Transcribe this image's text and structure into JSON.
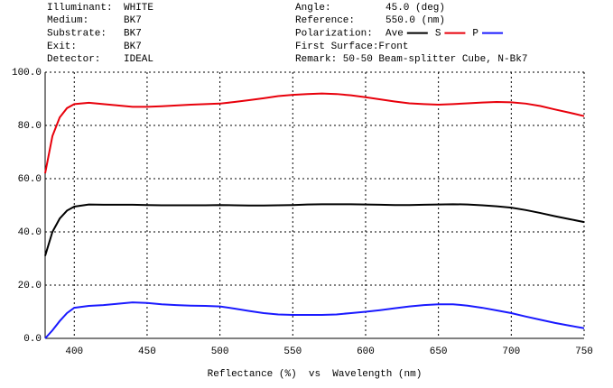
{
  "chart_data": {
    "type": "line",
    "info_left": [
      {
        "label": "Illuminant:",
        "value": "WHITE"
      },
      {
        "label": "Medium:",
        "value": "BK7"
      },
      {
        "label": "Substrate:",
        "value": "BK7"
      },
      {
        "label": "Exit:",
        "value": "BK7"
      },
      {
        "label": "Detector:",
        "value": "IDEAL"
      }
    ],
    "info_right": [
      {
        "label": "Angle:",
        "value": "45.0 (deg)"
      },
      {
        "label": "Reference:",
        "value": "550.0 (nm)"
      }
    ],
    "legend_label": "Polarization:",
    "first_surface": "First Surface:Front",
    "remark": "Remark: 50-50 Beam-splitter Cube, N-Bk7",
    "xlabel": "Reflectance (%)  vs  Wavelength (nm)",
    "x": [
      380,
      385,
      390,
      395,
      400,
      410,
      420,
      430,
      440,
      450,
      460,
      470,
      480,
      490,
      500,
      510,
      520,
      530,
      540,
      550,
      560,
      570,
      580,
      590,
      600,
      610,
      620,
      630,
      640,
      650,
      660,
      670,
      680,
      690,
      700,
      710,
      720,
      730,
      740,
      750
    ],
    "series": [
      {
        "name": "Ave",
        "color": "#000000",
        "values": [
          31,
          40,
          45,
          48,
          49.5,
          50.3,
          50.2,
          50.2,
          50.2,
          50.1,
          50,
          50,
          50,
          50,
          50.1,
          50,
          49.9,
          49.9,
          50,
          50.1,
          50.3,
          50.4,
          50.4,
          50.4,
          50.3,
          50.2,
          50.1,
          50.1,
          50.2,
          50.3,
          50.4,
          50.3,
          50,
          49.6,
          49.1,
          48.2,
          47.1,
          45.9,
          44.8,
          43.7
        ]
      },
      {
        "name": "S",
        "color": "#e8000b",
        "values": [
          62,
          76,
          83,
          86.5,
          88,
          88.5,
          88,
          87.5,
          87,
          87,
          87.2,
          87.5,
          87.8,
          88,
          88.2,
          88.8,
          89.5,
          90.2,
          91,
          91.5,
          91.8,
          92,
          91.8,
          91.3,
          90.6,
          89.8,
          89,
          88.3,
          88,
          87.8,
          88,
          88.3,
          88.6,
          88.8,
          88.7,
          88.2,
          87.3,
          86,
          84.8,
          83.5
        ]
      },
      {
        "name": "P",
        "color": "#1a1aff",
        "values": [
          0,
          3,
          6.5,
          9.5,
          11.5,
          12.2,
          12.5,
          13,
          13.5,
          13.3,
          12.8,
          12.5,
          12.3,
          12.2,
          12,
          11.2,
          10.3,
          9.5,
          9,
          8.8,
          8.8,
          8.8,
          9,
          9.5,
          10,
          10.6,
          11.3,
          12,
          12.5,
          12.8,
          12.8,
          12.3,
          11.5,
          10.5,
          9.5,
          8.2,
          7,
          5.8,
          4.8,
          3.8
        ]
      }
    ],
    "xlim": [
      380,
      750
    ],
    "xticks": [
      400,
      450,
      500,
      550,
      600,
      650,
      700,
      750
    ],
    "ylim": [
      0,
      100
    ],
    "yticks": [
      {
        "value": 0,
        "label": "0.0"
      },
      {
        "value": 20,
        "label": "20.0"
      },
      {
        "value": 40,
        "label": "40.0"
      },
      {
        "value": 60,
        "label": "60.0"
      },
      {
        "value": 80,
        "label": "80.0"
      },
      {
        "value": 100,
        "label": "100.0"
      }
    ],
    "grid": true
  }
}
